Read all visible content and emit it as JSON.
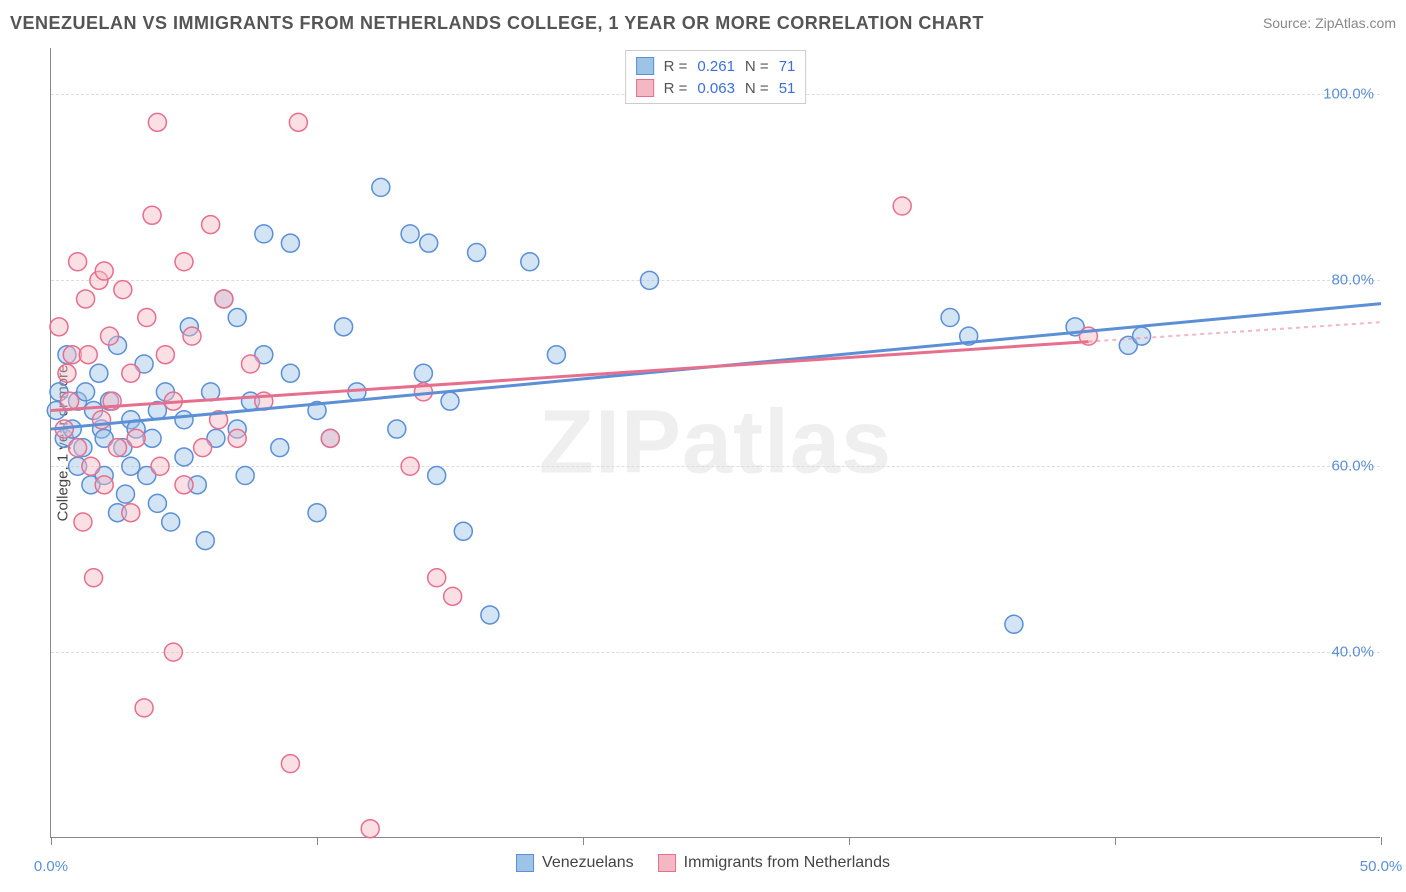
{
  "title": "VENEZUELAN VS IMMIGRANTS FROM NETHERLANDS COLLEGE, 1 YEAR OR MORE CORRELATION CHART",
  "source": "Source: ZipAtlas.com",
  "y_axis_label": "College, 1 year or more",
  "watermark": "ZIPatlas",
  "chart": {
    "type": "scatter",
    "xlim": [
      0,
      50
    ],
    "ylim": [
      20,
      105
    ],
    "x_ticks": [
      0,
      10,
      20,
      30,
      40,
      50
    ],
    "x_tick_labels": [
      "0.0%",
      "",
      "",
      "",
      "",
      "50.0%"
    ],
    "y_ticks": [
      40,
      60,
      80,
      100
    ],
    "y_tick_labels": [
      "40.0%",
      "60.0%",
      "80.0%",
      "100.0%"
    ],
    "background_color": "#ffffff",
    "grid_color": "#dddddd",
    "grid_dash": true,
    "marker_radius": 9,
    "marker_fill_opacity": 0.45,
    "trend_line_width": 3
  },
  "series": [
    {
      "id": "venezuelans",
      "label": "Venezuelans",
      "fill_color": "#9dc3e6",
      "stroke_color": "#5b8fd6",
      "R": "0.261",
      "N": "71",
      "trend": {
        "x1": 0,
        "y1": 64,
        "x2": 50,
        "y2": 77.5,
        "solid_until_x": 50
      },
      "points": [
        [
          0.2,
          66
        ],
        [
          0.3,
          68
        ],
        [
          0.5,
          63
        ],
        [
          0.6,
          72
        ],
        [
          0.8,
          64
        ],
        [
          1.0,
          60
        ],
        [
          1.0,
          67
        ],
        [
          1.2,
          62
        ],
        [
          1.3,
          68
        ],
        [
          1.5,
          58
        ],
        [
          1.6,
          66
        ],
        [
          1.8,
          70
        ],
        [
          1.9,
          64
        ],
        [
          2.0,
          63
        ],
        [
          2.0,
          59
        ],
        [
          2.2,
          67
        ],
        [
          2.5,
          55
        ],
        [
          2.5,
          73
        ],
        [
          2.7,
          62
        ],
        [
          2.8,
          57
        ],
        [
          3.0,
          60
        ],
        [
          3.0,
          65
        ],
        [
          3.2,
          64
        ],
        [
          3.5,
          71
        ],
        [
          3.6,
          59
        ],
        [
          3.8,
          63
        ],
        [
          4.0,
          66
        ],
        [
          4.0,
          56
        ],
        [
          4.3,
          68
        ],
        [
          4.5,
          54
        ],
        [
          5.0,
          61
        ],
        [
          5.0,
          65
        ],
        [
          5.2,
          75
        ],
        [
          5.5,
          58
        ],
        [
          5.8,
          52
        ],
        [
          6.0,
          68
        ],
        [
          6.2,
          63
        ],
        [
          6.5,
          78
        ],
        [
          7.0,
          64
        ],
        [
          7.0,
          76
        ],
        [
          7.3,
          59
        ],
        [
          7.5,
          67
        ],
        [
          8.0,
          72
        ],
        [
          8.0,
          85
        ],
        [
          8.6,
          62
        ],
        [
          9.0,
          70
        ],
        [
          9.0,
          84
        ],
        [
          10.0,
          66
        ],
        [
          10.0,
          55
        ],
        [
          10.5,
          63
        ],
        [
          11.0,
          75
        ],
        [
          11.5,
          68
        ],
        [
          12.4,
          90
        ],
        [
          13.0,
          64
        ],
        [
          13.5,
          85
        ],
        [
          14.0,
          70
        ],
        [
          14.2,
          84
        ],
        [
          14.5,
          59
        ],
        [
          15.0,
          67
        ],
        [
          15.5,
          53
        ],
        [
          16.0,
          83
        ],
        [
          16.5,
          44
        ],
        [
          18.0,
          82
        ],
        [
          19.0,
          72
        ],
        [
          22.5,
          80
        ],
        [
          33.8,
          76
        ],
        [
          34.5,
          74
        ],
        [
          36.2,
          43
        ],
        [
          38.5,
          75
        ],
        [
          40.5,
          73
        ],
        [
          41.0,
          74
        ]
      ]
    },
    {
      "id": "netherlands",
      "label": "Immigrants from Netherlands",
      "fill_color": "#f4b8c4",
      "stroke_color": "#e76f8e",
      "R": "0.063",
      "N": "51",
      "trend": {
        "x1": 0,
        "y1": 66,
        "x2": 50,
        "y2": 75.5,
        "solid_until_x": 39
      },
      "points": [
        [
          0.3,
          75
        ],
        [
          0.5,
          64
        ],
        [
          0.6,
          70
        ],
        [
          0.7,
          67
        ],
        [
          0.8,
          72
        ],
        [
          1.0,
          62
        ],
        [
          1.0,
          82
        ],
        [
          1.2,
          54
        ],
        [
          1.3,
          78
        ],
        [
          1.4,
          72
        ],
        [
          1.5,
          60
        ],
        [
          1.6,
          48
        ],
        [
          1.8,
          80
        ],
        [
          1.9,
          65
        ],
        [
          2.0,
          81
        ],
        [
          2.0,
          58
        ],
        [
          2.2,
          74
        ],
        [
          2.3,
          67
        ],
        [
          2.5,
          62
        ],
        [
          2.7,
          79
        ],
        [
          3.0,
          55
        ],
        [
          3.0,
          70
        ],
        [
          3.2,
          63
        ],
        [
          3.5,
          34
        ],
        [
          3.6,
          76
        ],
        [
          3.8,
          87
        ],
        [
          4.0,
          97
        ],
        [
          4.1,
          60
        ],
        [
          4.3,
          72
        ],
        [
          4.6,
          67
        ],
        [
          4.6,
          40
        ],
        [
          5.0,
          82
        ],
        [
          5.0,
          58
        ],
        [
          5.3,
          74
        ],
        [
          5.7,
          62
        ],
        [
          6.0,
          86
        ],
        [
          6.3,
          65
        ],
        [
          6.5,
          78
        ],
        [
          7.0,
          63
        ],
        [
          7.5,
          71
        ],
        [
          8.0,
          67
        ],
        [
          9.0,
          28
        ],
        [
          9.3,
          97
        ],
        [
          10.5,
          63
        ],
        [
          12.0,
          21
        ],
        [
          13.5,
          60
        ],
        [
          14.5,
          48
        ],
        [
          14.0,
          68
        ],
        [
          15.1,
          46
        ],
        [
          32.0,
          88
        ],
        [
          39.0,
          74
        ]
      ]
    }
  ],
  "legend_top": {
    "rows": [
      {
        "swatch": 0,
        "r_label": "R =",
        "r_value": "0.261",
        "n_label": "N =",
        "n_value": "71"
      },
      {
        "swatch": 1,
        "r_label": "R =",
        "r_value": "0.063",
        "n_label": "N =",
        "n_value": "51"
      }
    ]
  }
}
